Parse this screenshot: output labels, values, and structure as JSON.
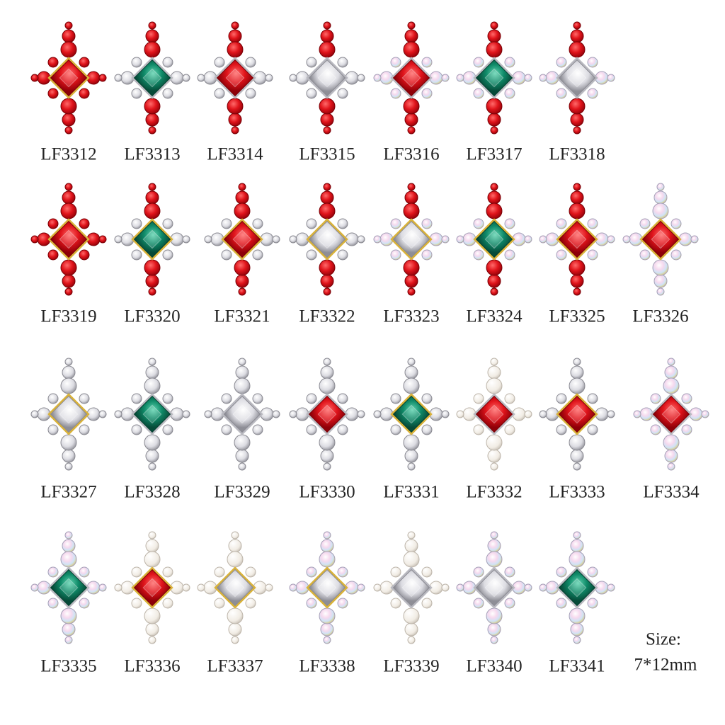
{
  "items": [
    {
      "label": "LF3312"
    },
    {
      "label": "LF3313"
    },
    {
      "label": "LF3314"
    },
    {
      "label": "LF3315"
    },
    {
      "label": "LF3316"
    },
    {
      "label": "LF3317"
    },
    {
      "label": "LF3318"
    },
    {
      "label": "LF3319"
    },
    {
      "label": "LF3320"
    },
    {
      "label": "LF3321"
    },
    {
      "label": "LF3322"
    },
    {
      "label": "LF3323"
    },
    {
      "label": "LF3324"
    },
    {
      "label": "LF3325"
    },
    {
      "label": "LF3326"
    },
    {
      "label": "LF3327"
    },
    {
      "label": "LF3328"
    },
    {
      "label": "LF3329"
    },
    {
      "label": "LF3330"
    },
    {
      "label": "LF3331"
    },
    {
      "label": "LF3332"
    },
    {
      "label": "LF3333"
    },
    {
      "label": "LF3334"
    },
    {
      "label": "LF3335"
    },
    {
      "label": "LF3336"
    },
    {
      "label": "LF3337"
    },
    {
      "label": "LF3338"
    },
    {
      "label": "LF3339"
    },
    {
      "label": "LF3340"
    },
    {
      "label": "LF3341"
    }
  ],
  "size": {
    "title": "Size:",
    "value": "7*12mm"
  }
}
